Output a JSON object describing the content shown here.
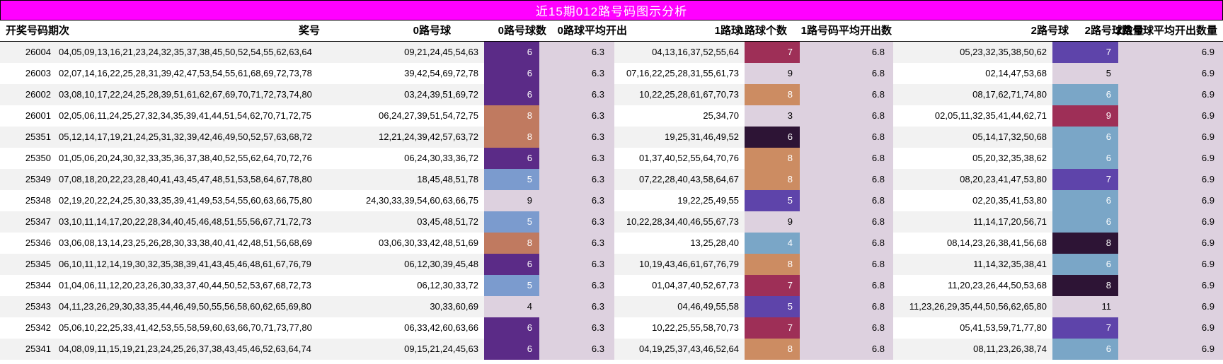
{
  "title": "近15期012路号码图示分析",
  "header": {
    "period": "开奖号码期次",
    "numbers": "奖号",
    "road0_balls": "0路号球",
    "road0_count": "0路号球数",
    "road0_avg": "0路球平均开出",
    "road1_balls": "1路球",
    "road1_count": "1路球个数",
    "road1_avg": "1路号码平均开出数",
    "road2_balls": "2路号球",
    "road2_count": "2路号球数量",
    "road2_avg": "2路号球平均开出数量"
  },
  "averages": {
    "road0": "6.3",
    "road1": "6.8",
    "road2": "6.9"
  },
  "colors": {
    "titlebar_bg": "#ff00ff",
    "title_text": "#ffffff",
    "stripe": "#f2f2f2",
    "lavender": "#ddd1df",
    "purple": "#5b2b87",
    "salmon": "#c07a60",
    "steelblue": "#7b9bce",
    "berry": "#9e2f57",
    "tan": "#cc8c62",
    "dark": "#2d1435",
    "violet": "#5e44aa",
    "lightblue": "#7aa6c7",
    "none": ""
  },
  "rows": [
    {
      "period": "26004",
      "numbers": "04,05,09,13,16,21,23,24,32,35,37,38,45,50,52,54,55,62,63,64",
      "r0": "09,21,24,45,54,63",
      "r0n": "6",
      "r0c": "purple",
      "r1": "04,13,16,37,52,55,64",
      "r1n": "7",
      "r1c": "berry",
      "r2": "05,23,32,35,38,50,62",
      "r2n": "7",
      "r2c": "violet"
    },
    {
      "period": "26003",
      "numbers": "02,07,14,16,22,25,28,31,39,42,47,53,54,55,61,68,69,72,73,78",
      "r0": "39,42,54,69,72,78",
      "r0n": "6",
      "r0c": "purple",
      "r1": "07,16,22,25,28,31,55,61,73",
      "r1n": "9",
      "r1c": "none",
      "r2": "02,14,47,53,68",
      "r2n": "5",
      "r2c": "none"
    },
    {
      "period": "26002",
      "numbers": "03,08,10,17,22,24,25,28,39,51,61,62,67,69,70,71,72,73,74,80",
      "r0": "03,24,39,51,69,72",
      "r0n": "6",
      "r0c": "purple",
      "r1": "10,22,25,28,61,67,70,73",
      "r1n": "8",
      "r1c": "tan",
      "r2": "08,17,62,71,74,80",
      "r2n": "6",
      "r2c": "lightblue"
    },
    {
      "period": "26001",
      "numbers": "02,05,06,11,24,25,27,32,34,35,39,41,44,51,54,62,70,71,72,75",
      "r0": "06,24,27,39,51,54,72,75",
      "r0n": "8",
      "r0c": "salmon",
      "r1": "25,34,70",
      "r1n": "3",
      "r1c": "none",
      "r2": "02,05,11,32,35,41,44,62,71",
      "r2n": "9",
      "r2c": "berry"
    },
    {
      "period": "25351",
      "numbers": "05,12,14,17,19,21,24,25,31,32,39,42,46,49,50,52,57,63,68,72",
      "r0": "12,21,24,39,42,57,63,72",
      "r0n": "8",
      "r0c": "salmon",
      "r1": "19,25,31,46,49,52",
      "r1n": "6",
      "r1c": "dark",
      "r2": "05,14,17,32,50,68",
      "r2n": "6",
      "r2c": "lightblue"
    },
    {
      "period": "25350",
      "numbers": "01,05,06,20,24,30,32,33,35,36,37,38,40,52,55,62,64,70,72,76",
      "r0": "06,24,30,33,36,72",
      "r0n": "6",
      "r0c": "purple",
      "r1": "01,37,40,52,55,64,70,76",
      "r1n": "8",
      "r1c": "tan",
      "r2": "05,20,32,35,38,62",
      "r2n": "6",
      "r2c": "lightblue"
    },
    {
      "period": "25349",
      "numbers": "07,08,18,20,22,23,28,40,41,43,45,47,48,51,53,58,64,67,78,80",
      "r0": "18,45,48,51,78",
      "r0n": "5",
      "r0c": "steelblue",
      "r1": "07,22,28,40,43,58,64,67",
      "r1n": "8",
      "r1c": "tan",
      "r2": "08,20,23,41,47,53,80",
      "r2n": "7",
      "r2c": "violet"
    },
    {
      "period": "25348",
      "numbers": "02,19,20,22,24,25,30,33,35,39,41,49,53,54,55,60,63,66,75,80",
      "r0": "24,30,33,39,54,60,63,66,75",
      "r0n": "9",
      "r0c": "none",
      "r1": "19,22,25,49,55",
      "r1n": "5",
      "r1c": "violet",
      "r2": "02,20,35,41,53,80",
      "r2n": "6",
      "r2c": "lightblue"
    },
    {
      "period": "25347",
      "numbers": "03,10,11,14,17,20,22,28,34,40,45,46,48,51,55,56,67,71,72,73",
      "r0": "03,45,48,51,72",
      "r0n": "5",
      "r0c": "steelblue",
      "r1": "10,22,28,34,40,46,55,67,73",
      "r1n": "9",
      "r1c": "none",
      "r2": "11,14,17,20,56,71",
      "r2n": "6",
      "r2c": "lightblue"
    },
    {
      "period": "25346",
      "numbers": "03,06,08,13,14,23,25,26,28,30,33,38,40,41,42,48,51,56,68,69",
      "r0": "03,06,30,33,42,48,51,69",
      "r0n": "8",
      "r0c": "salmon",
      "r1": "13,25,28,40",
      "r1n": "4",
      "r1c": "lightblue",
      "r2": "08,14,23,26,38,41,56,68",
      "r2n": "8",
      "r2c": "dark"
    },
    {
      "period": "25345",
      "numbers": "06,10,11,12,14,19,30,32,35,38,39,41,43,45,46,48,61,67,76,79",
      "r0": "06,12,30,39,45,48",
      "r0n": "6",
      "r0c": "purple",
      "r1": "10,19,43,46,61,67,76,79",
      "r1n": "8",
      "r1c": "tan",
      "r2": "11,14,32,35,38,41",
      "r2n": "6",
      "r2c": "lightblue"
    },
    {
      "period": "25344",
      "numbers": "01,04,06,11,12,20,23,26,30,33,37,40,44,50,52,53,67,68,72,73",
      "r0": "06,12,30,33,72",
      "r0n": "5",
      "r0c": "steelblue",
      "r1": "01,04,37,40,52,67,73",
      "r1n": "7",
      "r1c": "berry",
      "r2": "11,20,23,26,44,50,53,68",
      "r2n": "8",
      "r2c": "dark"
    },
    {
      "period": "25343",
      "numbers": "04,11,23,26,29,30,33,35,44,46,49,50,55,56,58,60,62,65,69,80",
      "r0": "30,33,60,69",
      "r0n": "4",
      "r0c": "none",
      "r1": "04,46,49,55,58",
      "r1n": "5",
      "r1c": "violet",
      "r2": "11,23,26,29,35,44,50,56,62,65,80",
      "r2n": "11",
      "r2c": "none"
    },
    {
      "period": "25342",
      "numbers": "05,06,10,22,25,33,41,42,53,55,58,59,60,63,66,70,71,73,77,80",
      "r0": "06,33,42,60,63,66",
      "r0n": "6",
      "r0c": "purple",
      "r1": "10,22,25,55,58,70,73",
      "r1n": "7",
      "r1c": "berry",
      "r2": "05,41,53,59,71,77,80",
      "r2n": "7",
      "r2c": "violet"
    },
    {
      "period": "25341",
      "numbers": "04,08,09,11,15,19,21,23,24,25,26,37,38,43,45,46,52,63,64,74",
      "r0": "09,15,21,24,45,63",
      "r0n": "6",
      "r0c": "purple",
      "r1": "04,19,25,37,43,46,52,64",
      "r1n": "8",
      "r1c": "tan",
      "r2": "08,11,23,26,38,74",
      "r2n": "6",
      "r2c": "lightblue"
    }
  ]
}
